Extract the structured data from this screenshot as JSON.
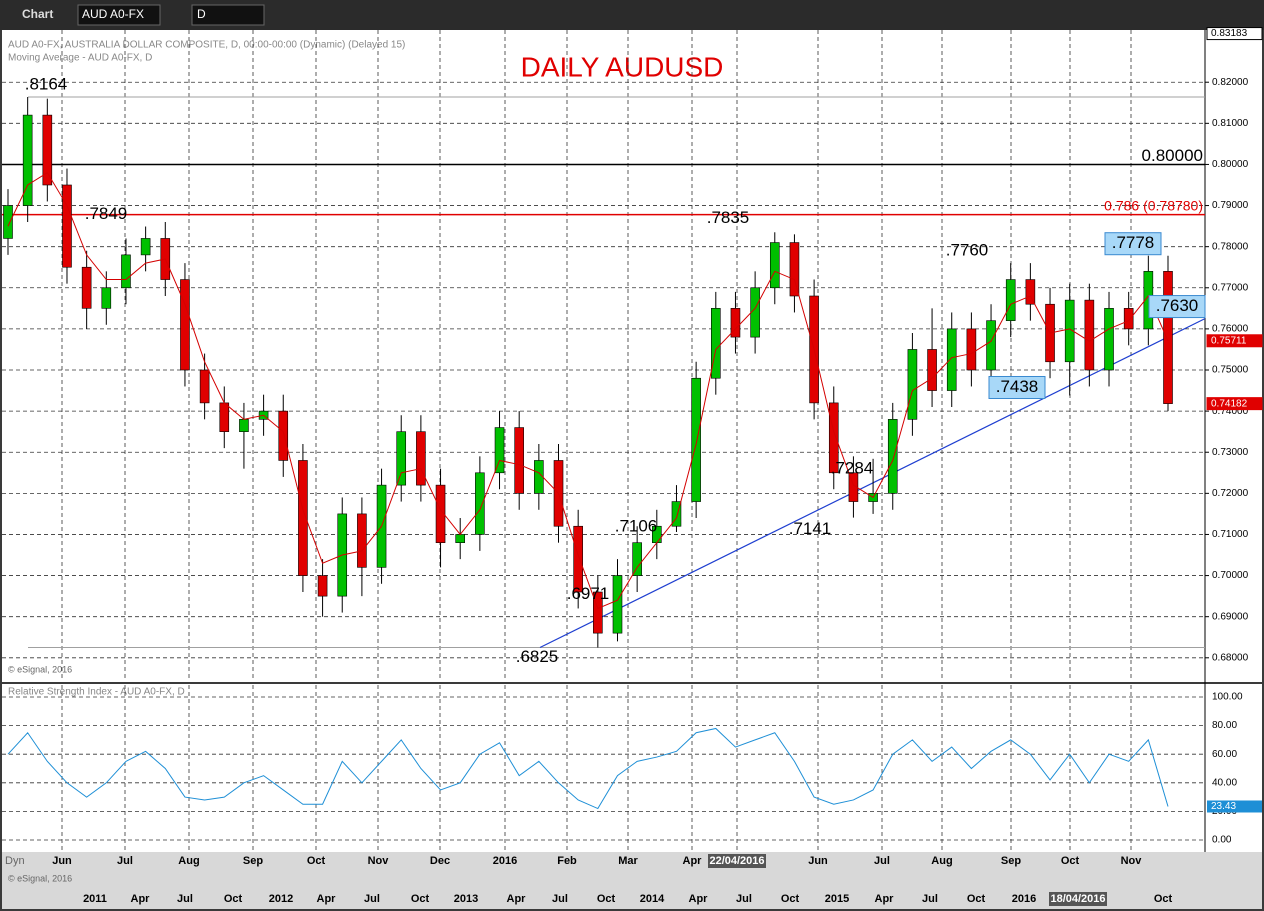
{
  "toolbar": {
    "app": "Chart",
    "symbol": "AUD A0-FX",
    "interval": "D",
    "bottom_tab": "Dyn"
  },
  "chart_data": [
    {
      "type": "candlestick",
      "title": "DAILY AUDUSD",
      "header": [
        "AUD A0-FX, AUSTRALIA DOLLAR COMPOSITE, D, 00:00-00:00 (Dynamic) (Delayed 15)",
        "Moving Average - AUD A0-FX, D"
      ],
      "credit": "© eSignal, 2016",
      "open": [
        0.782,
        0.79,
        0.812,
        0.795,
        0.775,
        0.765,
        0.77,
        0.778,
        0.782,
        0.772,
        0.75,
        0.742,
        0.735,
        0.738,
        0.74,
        0.728,
        0.7,
        0.695,
        0.715,
        0.702,
        0.722,
        0.735,
        0.722,
        0.708,
        0.71,
        0.725,
        0.736,
        0.72,
        0.728,
        0.712,
        0.696,
        0.686,
        0.7,
        0.708,
        0.712,
        0.718,
        0.748,
        0.765,
        0.758,
        0.77,
        0.781,
        0.768,
        0.742,
        0.725,
        0.718,
        0.72,
        0.738,
        0.755,
        0.745,
        0.76,
        0.75,
        0.762,
        0.772,
        0.766,
        0.752,
        0.767,
        0.75,
        0.765,
        0.76,
        0.774
      ],
      "high": [
        0.794,
        0.8164,
        0.816,
        0.799,
        0.779,
        0.774,
        0.782,
        0.7849,
        0.786,
        0.776,
        0.754,
        0.746,
        0.742,
        0.744,
        0.744,
        0.732,
        0.704,
        0.719,
        0.719,
        0.726,
        0.739,
        0.739,
        0.726,
        0.714,
        0.729,
        0.74,
        0.74,
        0.732,
        0.732,
        0.716,
        0.7,
        0.704,
        0.712,
        0.716,
        0.722,
        0.752,
        0.769,
        0.769,
        0.774,
        0.7835,
        0.783,
        0.772,
        0.746,
        0.729,
        0.7284,
        0.742,
        0.759,
        0.765,
        0.764,
        0.764,
        0.766,
        0.776,
        0.776,
        0.77,
        0.771,
        0.771,
        0.769,
        0.769,
        0.7778,
        0.7778
      ],
      "low": [
        0.778,
        0.786,
        0.791,
        0.771,
        0.76,
        0.761,
        0.766,
        0.774,
        0.768,
        0.746,
        0.738,
        0.731,
        0.726,
        0.734,
        0.724,
        0.696,
        0.69,
        0.691,
        0.695,
        0.698,
        0.718,
        0.718,
        0.702,
        0.704,
        0.706,
        0.721,
        0.716,
        0.716,
        0.708,
        0.692,
        0.6825,
        0.684,
        0.696,
        0.704,
        0.7106,
        0.714,
        0.744,
        0.754,
        0.754,
        0.766,
        0.764,
        0.738,
        0.721,
        0.7141,
        0.715,
        0.716,
        0.734,
        0.741,
        0.741,
        0.746,
        0.746,
        0.758,
        0.762,
        0.748,
        0.7438,
        0.746,
        0.746,
        0.756,
        0.756,
        0.74
      ],
      "close": [
        0.79,
        0.812,
        0.795,
        0.775,
        0.765,
        0.77,
        0.778,
        0.782,
        0.772,
        0.75,
        0.742,
        0.735,
        0.738,
        0.74,
        0.728,
        0.7,
        0.695,
        0.715,
        0.702,
        0.722,
        0.735,
        0.722,
        0.708,
        0.71,
        0.725,
        0.736,
        0.72,
        0.728,
        0.712,
        0.696,
        0.686,
        0.7,
        0.708,
        0.712,
        0.718,
        0.748,
        0.765,
        0.758,
        0.77,
        0.781,
        0.768,
        0.742,
        0.725,
        0.718,
        0.72,
        0.738,
        0.755,
        0.745,
        0.76,
        0.75,
        0.762,
        0.772,
        0.766,
        0.752,
        0.767,
        0.75,
        0.765,
        0.76,
        0.774,
        0.74182
      ],
      "up_color": "#00c000",
      "down_color": "#e00000",
      "moving_average": {
        "color": "#d40000",
        "values": [
          0.785,
          0.795,
          0.798,
          0.79,
          0.778,
          0.772,
          0.772,
          0.776,
          0.777,
          0.766,
          0.752,
          0.742,
          0.738,
          0.739,
          0.735,
          0.716,
          0.703,
          0.705,
          0.706,
          0.712,
          0.725,
          0.726,
          0.716,
          0.71,
          0.716,
          0.728,
          0.727,
          0.725,
          0.72,
          0.705,
          0.692,
          0.694,
          0.702,
          0.708,
          0.714,
          0.732,
          0.755,
          0.76,
          0.765,
          0.774,
          0.772,
          0.755,
          0.735,
          0.722,
          0.719,
          0.728,
          0.745,
          0.748,
          0.753,
          0.754,
          0.757,
          0.766,
          0.768,
          0.759,
          0.76,
          0.757,
          0.76,
          0.762,
          0.768,
          0.75711
        ]
      },
      "ylim": [
        0.6746,
        0.8327
      ],
      "yticks": [
        {
          "value": 0.68,
          "label": "0.68000"
        },
        {
          "value": 0.69,
          "label": "0.69000"
        },
        {
          "value": 0.7,
          "label": "0.70000"
        },
        {
          "value": 0.71,
          "label": "0.71000"
        },
        {
          "value": 0.72,
          "label": "0.72000"
        },
        {
          "value": 0.73,
          "label": "0.73000"
        },
        {
          "value": 0.74,
          "label": "0.74000"
        },
        {
          "value": 0.75,
          "label": "0.75000"
        },
        {
          "value": 0.76,
          "label": "0.76000"
        },
        {
          "value": 0.77,
          "label": "0.77000"
        },
        {
          "value": 0.78,
          "label": "0.78000"
        },
        {
          "value": 0.79,
          "label": "0.79000"
        },
        {
          "value": 0.8,
          "label": "0.80000"
        },
        {
          "value": 0.81,
          "label": "0.81000"
        },
        {
          "value": 0.82,
          "label": "0.82000"
        }
      ],
      "axis_markers": [
        {
          "value": 0.83183,
          "label": "0.83183",
          "color": "#ffffff"
        },
        {
          "value": 0.75711,
          "label": "0.75711",
          "color": "#e00000"
        },
        {
          "value": 0.74182,
          "label": "0.74182",
          "color": "#e00000"
        }
      ],
      "levels": [
        {
          "value": 0.8,
          "label": "0.80000",
          "color": "#000000"
        },
        {
          "value": 0.7878,
          "label": "0.786 (0.78780)",
          "color": "#e00000"
        },
        {
          "value": 0.8164,
          "color": "#a0a0a0"
        },
        {
          "value": 0.6825,
          "color": "#a0a0a0"
        }
      ],
      "trendline": {
        "values": [
          0.6825,
          0.7625
        ],
        "color": "#1f3fd0"
      },
      "annotations": [
        {
          "text": ".8164"
        },
        {
          "text": ".7849"
        },
        {
          "text": ".7835"
        },
        {
          "text": ".7760"
        },
        {
          "text": ".7778",
          "boxed": true
        },
        {
          "text": ".7630",
          "boxed": true
        },
        {
          "text": ".7438",
          "boxed": true
        },
        {
          "text": ".7284"
        },
        {
          "text": ".7141"
        },
        {
          "text": ".7106"
        },
        {
          "text": ".6971"
        },
        {
          "text": ".6825"
        }
      ],
      "grid": true
    },
    {
      "type": "line",
      "title": "Relative Strength Index - AUD A0-FX, D",
      "series": [
        {
          "name": "RSI",
          "color": "#1e8fd6",
          "values": [
            60,
            75,
            55,
            40,
            30,
            40,
            55,
            62,
            50,
            30,
            28,
            30,
            40,
            45,
            35,
            25,
            25,
            55,
            40,
            55,
            70,
            50,
            35,
            40,
            60,
            68,
            45,
            55,
            40,
            28,
            22,
            45,
            55,
            58,
            62,
            75,
            78,
            65,
            70,
            75,
            55,
            30,
            25,
            28,
            35,
            60,
            70,
            55,
            65,
            50,
            62,
            70,
            60,
            42,
            60,
            40,
            60,
            55,
            70,
            23.43
          ]
        }
      ],
      "last_marker": {
        "value": 23.43,
        "label": "23.43"
      },
      "ylim": [
        -10.5,
        108.4
      ],
      "yticks": [
        {
          "value": 0,
          "label": "0.00"
        },
        {
          "value": 20,
          "label": "20.00"
        },
        {
          "value": 40,
          "label": "40.00"
        },
        {
          "value": 60,
          "label": "60.00"
        },
        {
          "value": 80,
          "label": "80.00"
        },
        {
          "value": 100,
          "label": "100.00"
        }
      ],
      "grid": true
    }
  ],
  "x_axis": {
    "top": [
      "Jun",
      "Jul",
      "Aug",
      "Sep",
      "Oct",
      "Nov",
      "Dec",
      "2016",
      "Feb",
      "Mar",
      "Apr",
      "22/04/2016",
      "Jun",
      "Jul",
      "Aug",
      "Sep",
      "Oct",
      "Nov"
    ],
    "bottom": [
      "2011",
      "Apr",
      "Jul",
      "Oct",
      "2012",
      "Apr",
      "Jul",
      "Oct",
      "2013",
      "Apr",
      "Jul",
      "Oct",
      "2014",
      "Apr",
      "Jul",
      "Oct",
      "2015",
      "Apr",
      "Jul",
      "Oct",
      "2016",
      "18/04/2016",
      "Oct"
    ],
    "bottom_credit": "© eSignal, 2016"
  }
}
